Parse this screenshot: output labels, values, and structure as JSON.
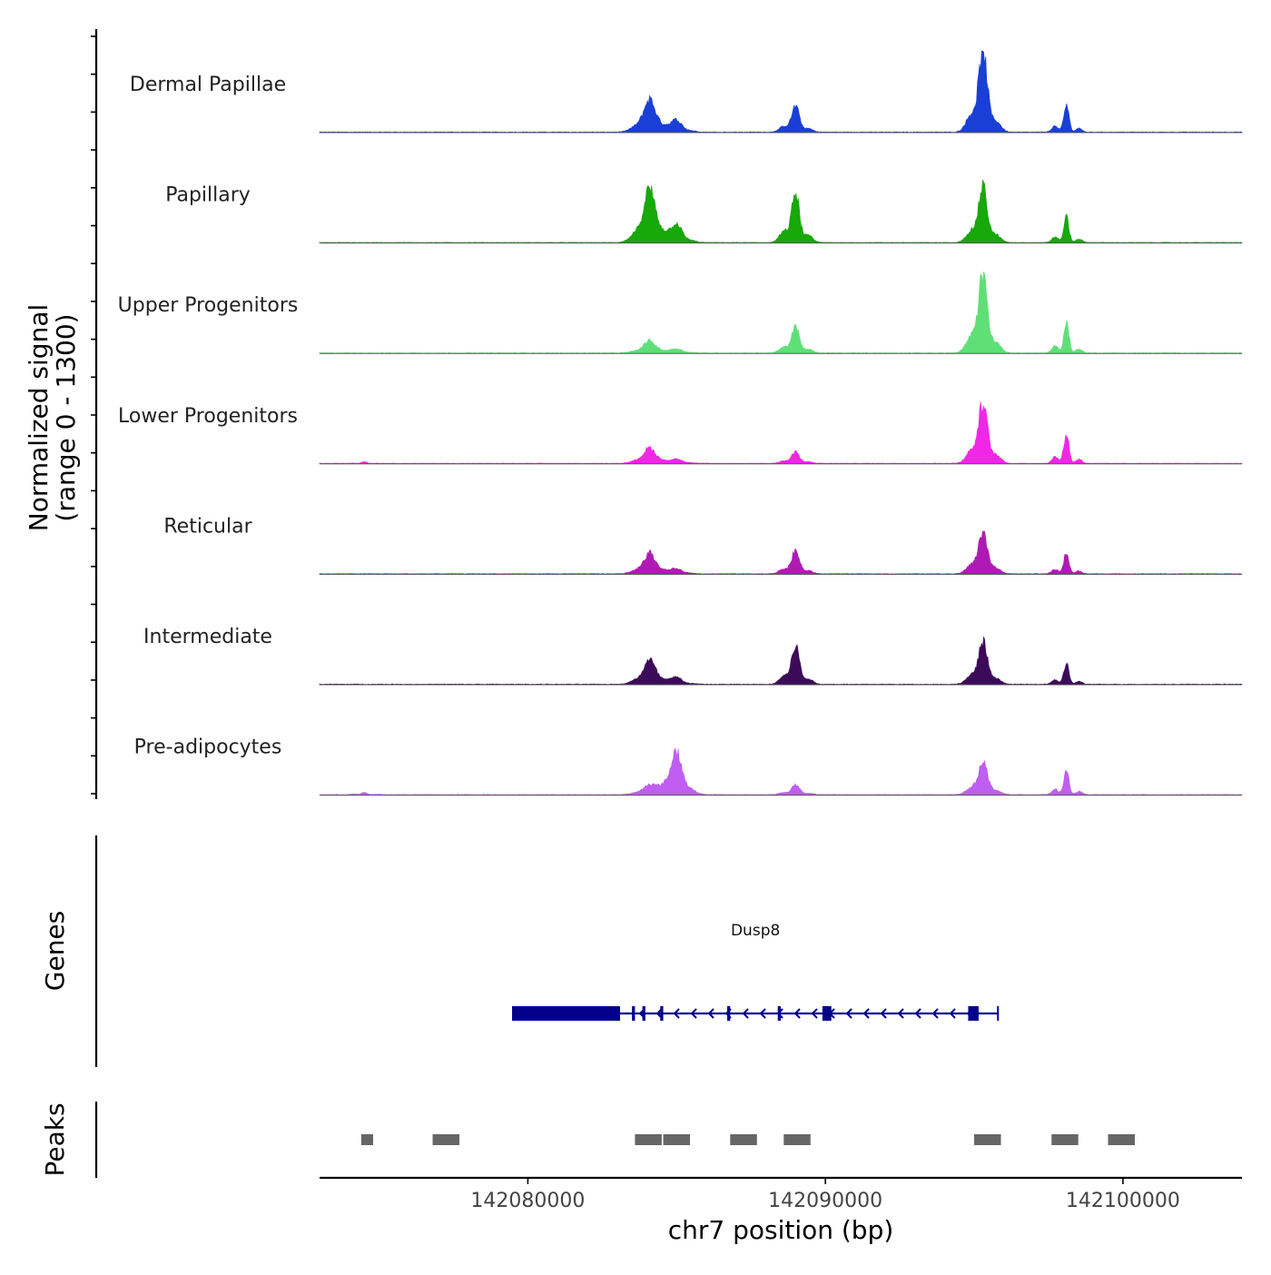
{
  "chart_data": {
    "type": "area",
    "title": "",
    "xlabel": "chr7 position (bp)",
    "ylabel": "Normalized signal",
    "ylabel_sub": "(range 0 - 1300)",
    "yrange": [
      0,
      1300
    ],
    "xlim": [
      142073000,
      142104000
    ],
    "xticks": [
      142080000,
      142090000,
      142100000
    ],
    "xtick_labels": [
      "142080000",
      "142090000",
      "142100000"
    ],
    "peak_centers": [
      142074500,
      142077200,
      142084100,
      142085000,
      142089000,
      142095300,
      142098100
    ],
    "series": [
      {
        "name": "Dermal Papillae",
        "color": "#1a3fd6",
        "peaks": [
          0,
          0,
          0.38,
          0.14,
          0.32,
          1.0,
          0.34
        ]
      },
      {
        "name": "Papillary",
        "color": "#17a80a",
        "peaks": [
          0,
          0,
          0.62,
          0.22,
          0.62,
          0.68,
          0.32
        ]
      },
      {
        "name": "Upper Progenitors",
        "color": "#5fe077",
        "peaks": [
          0,
          0,
          0.14,
          0.05,
          0.32,
          0.95,
          0.38
        ]
      },
      {
        "name": "Lower Progenitors",
        "color": "#f226e8",
        "peaks": [
          0.02,
          0,
          0.18,
          0.05,
          0.14,
          0.75,
          0.38
        ]
      },
      {
        "name": "Reticular",
        "color": "#b01ab4",
        "peaks": [
          0,
          0,
          0.24,
          0.06,
          0.28,
          0.52,
          0.26
        ]
      },
      {
        "name": "Intermediate",
        "color": "#3d0a5a",
        "peaks": [
          0,
          0,
          0.28,
          0.08,
          0.48,
          0.52,
          0.26
        ]
      },
      {
        "name": "Pre-adipocytes",
        "color": "#bf5ef0",
        "peaks": [
          0.03,
          0,
          0.12,
          0.52,
          0.12,
          0.42,
          0.3
        ]
      }
    ],
    "gene": {
      "name": "Dusp8",
      "color": "#00008b",
      "start": 142079500,
      "end": 142095800,
      "strand": "-",
      "exons": [
        [
          142079500,
          142083100
        ],
        [
          142083500,
          142083600
        ],
        [
          142083850,
          142083950
        ],
        [
          142084450,
          142084550
        ],
        [
          142086700,
          142086800
        ],
        [
          142088400,
          142088500
        ],
        [
          142089900,
          142090200
        ],
        [
          142094800,
          142095150
        ]
      ]
    },
    "peaks_track": {
      "label": "Peaks",
      "color": "#666666",
      "regions": [
        [
          142074400,
          142074800
        ],
        [
          142076800,
          142077700
        ],
        [
          142083600,
          142084500
        ],
        [
          142084550,
          142085450
        ],
        [
          142086800,
          142087700
        ],
        [
          142088600,
          142089500
        ],
        [
          142095000,
          142095900
        ],
        [
          142097600,
          142098500
        ],
        [
          142099500,
          142100400
        ]
      ]
    },
    "genes_track_label": "Genes"
  }
}
